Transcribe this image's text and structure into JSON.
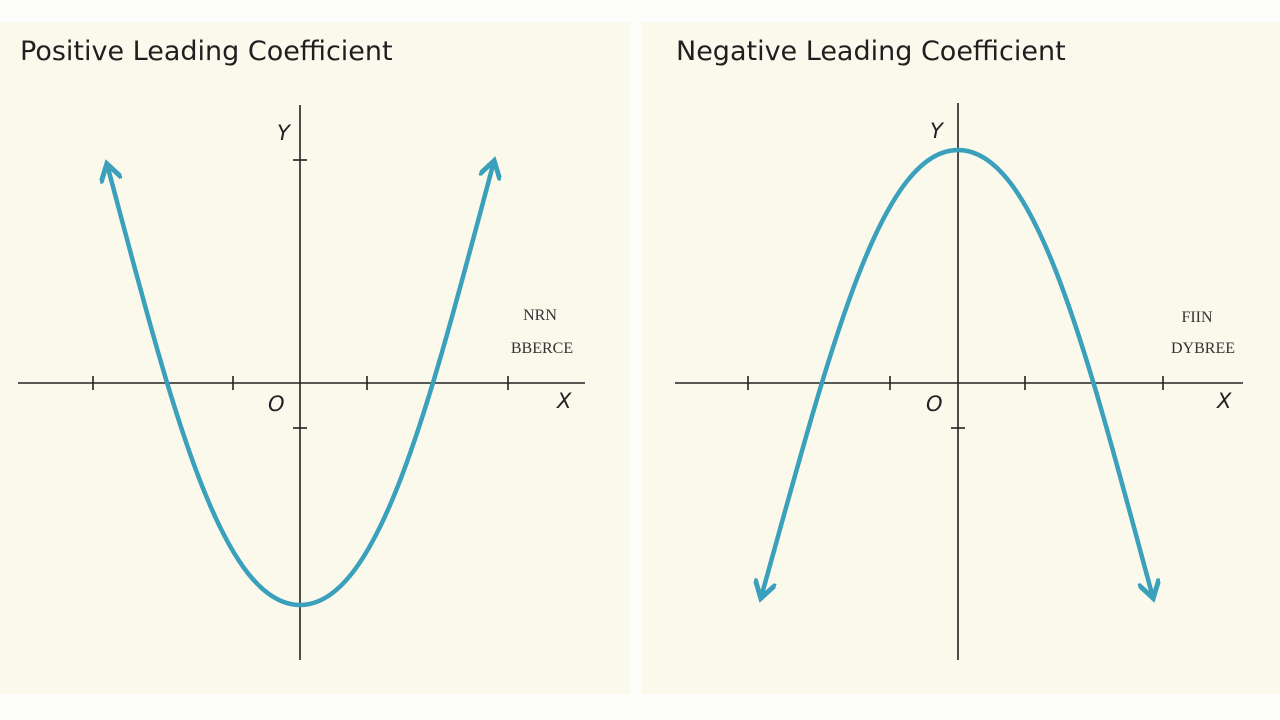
{
  "panels": [
    {
      "title": "Positive Leading Coefficient",
      "y_label": "Y",
      "x_label": "X",
      "origin_label": "O",
      "note": [
        "NRN",
        "BBERCE"
      ]
    },
    {
      "title": "Negative Leading Coefficient",
      "y_label": "Y",
      "x_label": "X",
      "origin_label": "O",
      "note": [
        "FIIN",
        "DYBREE"
      ]
    }
  ]
}
